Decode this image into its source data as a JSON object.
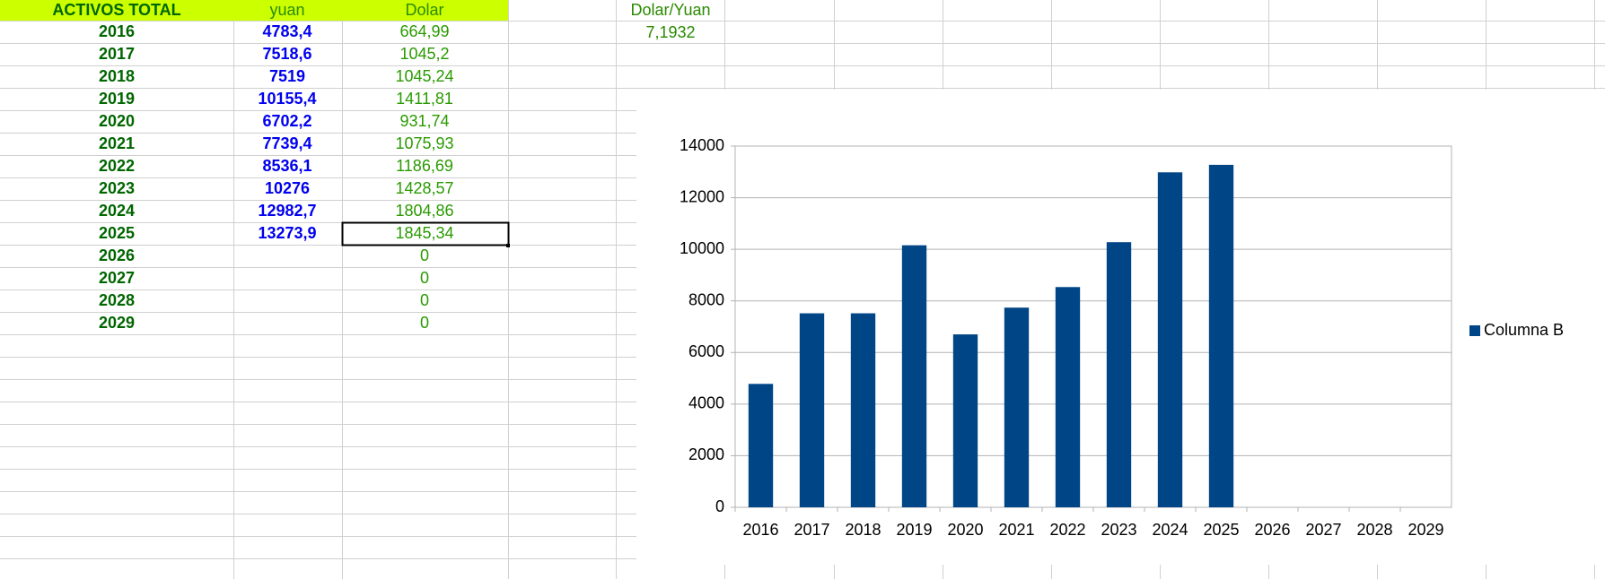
{
  "table": {
    "header": [
      "ACTIVOS TOTAL",
      "yuan",
      "Dolar"
    ],
    "rows": [
      [
        "2016",
        "4783,4",
        "664,99"
      ],
      [
        "2017",
        "7518,6",
        "1045,2"
      ],
      [
        "2018",
        "7519",
        "1045,24"
      ],
      [
        "2019",
        "10155,4",
        "1411,81"
      ],
      [
        "2020",
        "6702,2",
        "931,74"
      ],
      [
        "2021",
        "7739,4",
        "1075,93"
      ],
      [
        "2022",
        "8536,1",
        "1186,69"
      ],
      [
        "2023",
        "10276",
        "1428,57"
      ],
      [
        "2024",
        "12982,7",
        "1804,86"
      ],
      [
        "2025",
        "13273,9",
        "1845,34"
      ],
      [
        "2026",
        null,
        "0"
      ],
      [
        "2027",
        null,
        "0"
      ],
      [
        "2028",
        null,
        "0"
      ],
      [
        "2029",
        null,
        "0"
      ]
    ]
  },
  "exchange": {
    "label": "Dolar/Yuan",
    "value": "7,1932"
  },
  "chart_data": {
    "type": "bar",
    "categories": [
      "2016",
      "2017",
      "2018",
      "2019",
      "2020",
      "2021",
      "2022",
      "2023",
      "2024",
      "2025",
      "2026",
      "2027",
      "2028",
      "2029"
    ],
    "series": [
      {
        "name": "Columna B",
        "color": "#004586",
        "values": [
          4783.4,
          7518.6,
          7519,
          10155.4,
          6702.2,
          7739.4,
          8536.1,
          10276,
          12982.7,
          13273.9,
          null,
          null,
          null,
          null
        ]
      }
    ],
    "ylim": [
      0,
      14000
    ],
    "yticks": [
      0,
      2000,
      4000,
      6000,
      8000,
      10000,
      12000,
      14000
    ],
    "grid": true,
    "legend": "right"
  }
}
